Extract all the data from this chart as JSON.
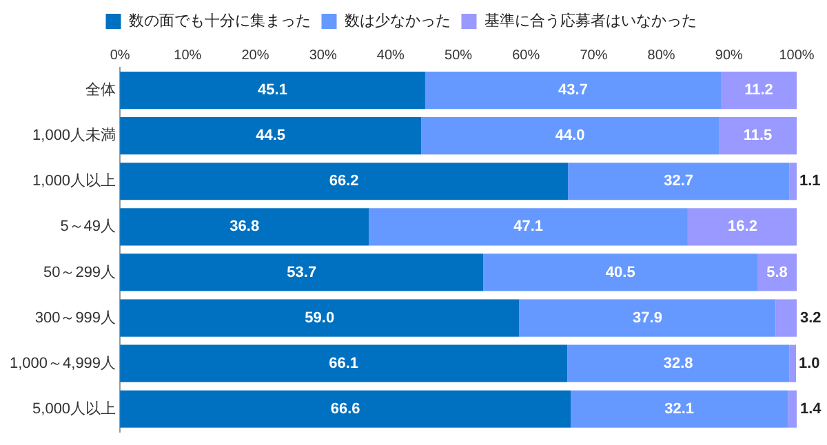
{
  "chart_data": {
    "type": "bar",
    "orientation": "horizontal",
    "stacked": true,
    "legend": "top",
    "grid": false,
    "categories": [
      "全体",
      "1,000人未満",
      "1,000人以上",
      "5～49人",
      "50～299人",
      "300～999人",
      "1,000～4,999人",
      "5,000人以上"
    ],
    "series": [
      {
        "name": "数の面でも十分に集まった",
        "color": "#0070c0",
        "values": [
          45.1,
          44.5,
          66.2,
          36.8,
          53.7,
          59.0,
          66.1,
          66.6
        ],
        "value_labels": [
          "45.1",
          "44.5",
          "66.2",
          "36.8",
          "53.7",
          "59.0",
          "66.1",
          "66.6"
        ]
      },
      {
        "name": "数は少なかった",
        "color": "#6699ff",
        "values": [
          43.7,
          44.0,
          32.7,
          47.1,
          40.5,
          37.9,
          32.8,
          32.1
        ],
        "value_labels": [
          "43.7",
          "44.0",
          "32.7",
          "47.1",
          "40.5",
          "37.9",
          "32.8",
          "32.1"
        ]
      },
      {
        "name": "基準に合う応募者はいなかった",
        "color": "#9999ff",
        "values": [
          11.2,
          11.5,
          1.1,
          16.2,
          5.8,
          3.2,
          1.0,
          1.4
        ],
        "value_labels": [
          "11.2",
          "11.5",
          "1.1",
          "16.2",
          "5.8",
          "3.2",
          "1.0",
          "1.4"
        ]
      }
    ],
    "xlim": [
      0,
      100
    ],
    "xticks": [
      {
        "value": 0,
        "label": "0%"
      },
      {
        "value": 10,
        "label": "10%"
      },
      {
        "value": 20,
        "label": "20%"
      },
      {
        "value": 30,
        "label": "30%"
      },
      {
        "value": 40,
        "label": "40%"
      },
      {
        "value": 50,
        "label": "50%"
      },
      {
        "value": 60,
        "label": "60%"
      },
      {
        "value": 70,
        "label": "70%"
      },
      {
        "value": 80,
        "label": "80%"
      },
      {
        "value": 90,
        "label": "90%"
      },
      {
        "value": 100,
        "label": "100%"
      }
    ]
  }
}
